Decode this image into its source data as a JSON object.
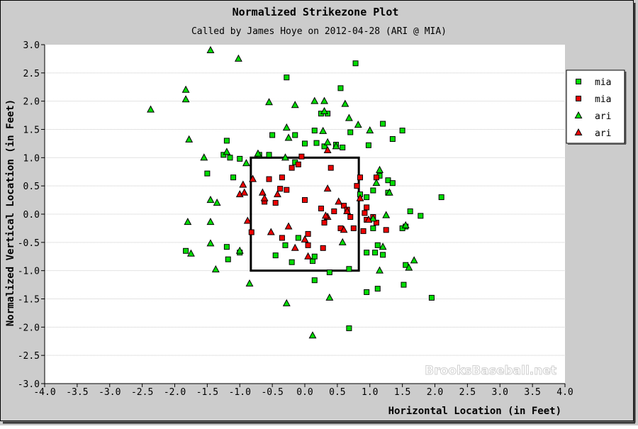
{
  "chart_data": {
    "type": "scatter",
    "title": "Normalized Strikezone Plot",
    "subtitle": "Called by James Hoye on 2012-04-28 (ARI @ MIA)",
    "xlabel": "Horizontal Location (in Feet)",
    "ylabel": "Normalized Vertical Location (in Feet)",
    "xlim": [
      -4.0,
      4.0
    ],
    "ylim": [
      -3.0,
      3.0
    ],
    "x_ticks": [
      "-4.0",
      "-3.5",
      "-3.0",
      "-2.5",
      "-2.0",
      "-1.5",
      "-1.0",
      "-0.5",
      "0.0",
      "0.5",
      "1.0",
      "1.5",
      "2.0",
      "2.5",
      "3.0",
      "3.5",
      "4.0"
    ],
    "y_ticks": [
      "3.0",
      "2.5",
      "2.0",
      "1.5",
      "1.0",
      "0.5",
      "0.0",
      "-0.5",
      "-1.0",
      "-1.5",
      "-2.0",
      "-2.5",
      "-3.0"
    ],
    "grid": "horizontal",
    "legend_position": "right",
    "watermark": "BrooksBaseball.net",
    "strike_zone": {
      "x": [
        -0.83,
        0.83
      ],
      "y": [
        -1.0,
        1.0
      ]
    },
    "colors": {
      "green": "#00dd00",
      "red": "#ee0000",
      "outline": "#000000",
      "background": "#cccccc"
    },
    "series": [
      {
        "name": "mia",
        "marker": "square",
        "color": "#00dd00",
        "points": [
          [
            -1.2,
            1.3
          ],
          [
            -1.25,
            1.05
          ],
          [
            -1.15,
            1.0
          ],
          [
            -1.1,
            0.65
          ],
          [
            -1.5,
            0.72
          ],
          [
            -1.0,
            0.98
          ],
          [
            -0.7,
            1.05
          ],
          [
            -0.55,
            1.05
          ],
          [
            -0.5,
            1.4
          ],
          [
            -0.15,
            1.4
          ],
          [
            -0.28,
            2.42
          ],
          [
            0.0,
            1.25
          ],
          [
            0.15,
            1.48
          ],
          [
            0.35,
            1.78
          ],
          [
            0.25,
            1.78
          ],
          [
            0.18,
            1.26
          ],
          [
            0.3,
            1.2
          ],
          [
            0.48,
            1.23
          ],
          [
            0.58,
            1.18
          ],
          [
            0.55,
            2.23
          ],
          [
            0.78,
            2.67
          ],
          [
            0.7,
            1.45
          ],
          [
            0.98,
            1.22
          ],
          [
            1.2,
            1.6
          ],
          [
            1.35,
            1.33
          ],
          [
            1.5,
            1.48
          ],
          [
            1.15,
            0.68
          ],
          [
            1.28,
            0.6
          ],
          [
            1.35,
            0.55
          ],
          [
            1.28,
            0.38
          ],
          [
            1.05,
            0.42
          ],
          [
            1.62,
            0.05
          ],
          [
            1.78,
            -0.03
          ],
          [
            2.1,
            0.3
          ],
          [
            1.55,
            -0.22
          ],
          [
            1.5,
            -0.25
          ],
          [
            1.12,
            -0.55
          ],
          [
            1.08,
            -0.68
          ],
          [
            1.2,
            -0.72
          ],
          [
            0.95,
            -0.68
          ],
          [
            1.55,
            -0.9
          ],
          [
            1.05,
            -0.25
          ],
          [
            1.52,
            -1.25
          ],
          [
            1.12,
            -1.32
          ],
          [
            0.95,
            -1.38
          ],
          [
            1.95,
            -1.48
          ],
          [
            0.68,
            -2.02
          ],
          [
            0.38,
            -1.03
          ],
          [
            0.15,
            -1.17
          ],
          [
            0.68,
            -0.97
          ],
          [
            0.12,
            -0.83
          ],
          [
            0.15,
            -0.75
          ],
          [
            -0.2,
            -0.85
          ],
          [
            -0.3,
            -0.55
          ],
          [
            -0.45,
            -0.73
          ],
          [
            -0.1,
            -0.42
          ],
          [
            -1.0,
            -0.68
          ],
          [
            -1.2,
            -0.58
          ],
          [
            -1.18,
            -0.8
          ],
          [
            -1.83,
            -0.65
          ],
          [
            0.85,
            0.35
          ],
          [
            0.95,
            0.3
          ],
          [
            -0.15,
            0.92
          ]
        ]
      },
      {
        "name": "mia",
        "marker": "square",
        "color": "#ee0000",
        "points": [
          [
            -0.82,
            -0.32
          ],
          [
            -0.55,
            0.62
          ],
          [
            -0.62,
            0.22
          ],
          [
            -0.45,
            0.2
          ],
          [
            -0.38,
            0.45
          ],
          [
            -0.28,
            0.43
          ],
          [
            -0.2,
            0.82
          ],
          [
            -0.35,
            0.65
          ],
          [
            -0.05,
            1.02
          ],
          [
            -0.1,
            0.88
          ],
          [
            0.0,
            0.25
          ],
          [
            0.05,
            -0.35
          ],
          [
            0.25,
            0.1
          ],
          [
            0.4,
            0.82
          ],
          [
            0.6,
            0.15
          ],
          [
            0.65,
            0.08
          ],
          [
            0.7,
            -0.05
          ],
          [
            0.8,
            0.5
          ],
          [
            0.85,
            0.65
          ],
          [
            0.95,
            0.12
          ],
          [
            0.92,
            0.02
          ],
          [
            1.1,
            0.65
          ],
          [
            0.75,
            -0.25
          ],
          [
            0.9,
            -0.3
          ],
          [
            1.25,
            -0.28
          ],
          [
            0.45,
            0.05
          ],
          [
            0.3,
            -0.15
          ],
          [
            0.55,
            -0.25
          ],
          [
            0.28,
            -0.6
          ],
          [
            0.05,
            -0.55
          ],
          [
            -0.35,
            -0.42
          ],
          [
            0.95,
            -0.1
          ],
          [
            1.05,
            -0.05
          ],
          [
            1.1,
            -0.15
          ]
        ]
      },
      {
        "name": "ari",
        "marker": "triangle",
        "color": "#00dd00",
        "points": [
          [
            -1.45,
            2.9
          ],
          [
            -1.02,
            2.75
          ],
          [
            -2.37,
            1.85
          ],
          [
            -1.83,
            2.2
          ],
          [
            -1.83,
            2.03
          ],
          [
            -1.78,
            1.32
          ],
          [
            -1.55,
            1.0
          ],
          [
            -0.55,
            1.98
          ],
          [
            -0.15,
            1.93
          ],
          [
            0.15,
            2.0
          ],
          [
            0.3,
            2.0
          ],
          [
            0.3,
            1.82
          ],
          [
            0.28,
            1.47
          ],
          [
            0.35,
            1.27
          ],
          [
            0.48,
            1.2
          ],
          [
            0.62,
            1.95
          ],
          [
            0.68,
            1.7
          ],
          [
            0.82,
            1.58
          ],
          [
            1.0,
            1.48
          ],
          [
            -0.28,
            1.53
          ],
          [
            -0.25,
            1.35
          ],
          [
            -0.3,
            1.0
          ],
          [
            -0.72,
            1.07
          ],
          [
            -0.9,
            0.9
          ],
          [
            -1.2,
            1.1
          ],
          [
            -1.45,
            0.25
          ],
          [
            -1.35,
            0.2
          ],
          [
            -1.8,
            -0.14
          ],
          [
            -1.45,
            -0.14
          ],
          [
            -1.45,
            -0.52
          ],
          [
            -1.75,
            -0.7
          ],
          [
            -1.37,
            -0.98
          ],
          [
            -1.0,
            -0.65
          ],
          [
            -0.85,
            -1.23
          ],
          [
            -0.28,
            -1.58
          ],
          [
            0.12,
            -2.15
          ],
          [
            0.38,
            -1.48
          ],
          [
            0.58,
            -0.5
          ],
          [
            1.15,
            -1.0
          ],
          [
            1.6,
            -0.95
          ],
          [
            1.68,
            -0.82
          ],
          [
            1.55,
            -0.2
          ],
          [
            1.25,
            -0.02
          ],
          [
            1.05,
            -0.08
          ],
          [
            1.2,
            -0.58
          ],
          [
            1.1,
            0.55
          ],
          [
            1.15,
            0.78
          ],
          [
            1.3,
            0.38
          ]
        ]
      },
      {
        "name": "ari",
        "marker": "triangle",
        "color": "#ee0000",
        "points": [
          [
            -0.8,
            0.62
          ],
          [
            -0.95,
            0.52
          ],
          [
            -1.0,
            0.35
          ],
          [
            -0.93,
            0.38
          ],
          [
            -0.65,
            0.38
          ],
          [
            -0.42,
            0.35
          ],
          [
            -0.62,
            0.28
          ],
          [
            -0.88,
            -0.12
          ],
          [
            -0.52,
            -0.32
          ],
          [
            -0.15,
            -0.6
          ],
          [
            -0.25,
            -0.22
          ],
          [
            0.0,
            -0.45
          ],
          [
            0.05,
            -0.75
          ],
          [
            0.35,
            1.13
          ],
          [
            0.35,
            0.45
          ],
          [
            0.35,
            -0.05
          ],
          [
            0.65,
            0.05
          ],
          [
            0.52,
            0.22
          ],
          [
            0.6,
            -0.28
          ],
          [
            0.85,
            0.28
          ],
          [
            0.98,
            -0.1
          ],
          [
            0.32,
            -0.03
          ]
        ]
      }
    ]
  }
}
